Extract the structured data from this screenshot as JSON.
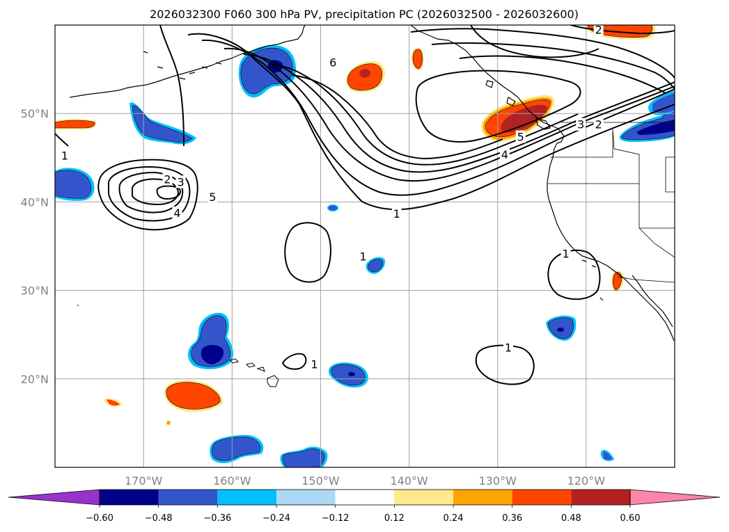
{
  "title": "2026032300 F060 300 hPa PV, precipitation PC (2026032500 - 2026032600)",
  "map": {
    "lon_range": [
      -180,
      -110
    ],
    "lat_range": [
      10,
      60
    ],
    "lon_ticks": [
      {
        "lon": -170,
        "label": "170°W"
      },
      {
        "lon": -160,
        "label": "160°W"
      },
      {
        "lon": -150,
        "label": "150°W"
      },
      {
        "lon": -140,
        "label": "140°W"
      },
      {
        "lon": -130,
        "label": "130°W"
      },
      {
        "lon": -120,
        "label": "120°W"
      }
    ],
    "lat_ticks": [
      {
        "lat": 20,
        "label": "20°N"
      },
      {
        "lat": 30,
        "label": "30°N"
      },
      {
        "lat": 40,
        "label": "40°N"
      },
      {
        "lat": 50,
        "label": "50°N"
      }
    ],
    "contour_labels": [
      {
        "text": "6",
        "lon": -148.6,
        "lat": 55.7
      },
      {
        "text": "2",
        "lon": -167.3,
        "lat": 42.5
      },
      {
        "text": "3",
        "lon": -165.8,
        "lat": 42.2
      },
      {
        "text": "5",
        "lon": -162.2,
        "lat": 40.5
      },
      {
        "text": "4",
        "lon": -166.2,
        "lat": 38.7
      },
      {
        "text": "1",
        "lon": -141.4,
        "lat": 38.6
      },
      {
        "text": "1",
        "lon": -145.2,
        "lat": 33.8
      },
      {
        "text": "1",
        "lon": -150.7,
        "lat": 21.6
      },
      {
        "text": "1",
        "lon": -128.8,
        "lat": 23.5
      },
      {
        "text": "1",
        "lon": -122.3,
        "lat": 34.1
      },
      {
        "text": "3",
        "lon": -120.6,
        "lat": 48.7
      },
      {
        "text": "2",
        "lon": -118.6,
        "lat": 48.7
      },
      {
        "text": "2",
        "lon": -118.6,
        "lat": 59.4
      },
      {
        "text": "4",
        "lon": -129.2,
        "lat": 45.3
      },
      {
        "text": "5",
        "lon": -127.4,
        "lat": 47.3
      },
      {
        "text": "1",
        "lon": -178.9,
        "lat": 45.2
      }
    ]
  },
  "colorbar": {
    "levels": [
      "−0.60",
      "−0.48",
      "−0.36",
      "−0.24",
      "−0.12",
      "0.12",
      "0.24",
      "0.36",
      "0.48",
      "0.60"
    ],
    "colors": [
      "#9932cc",
      "#00008b",
      "#3355cc",
      "#00bfff",
      "#add8f6",
      "#ffffff",
      "#ffe98a",
      "#ffa500",
      "#ff4500",
      "#b22222",
      "#ff85a8"
    ]
  },
  "colors": {
    "neg_strong": "#00008b",
    "neg_mid": "#3355cc",
    "neg_light": "#00bfff",
    "pos_light": "#ffe98a",
    "pos_mid": "#ffa500",
    "pos_strong": "#ff4500",
    "pos_dark": "#b22222",
    "grid": "#a0a0a0"
  }
}
